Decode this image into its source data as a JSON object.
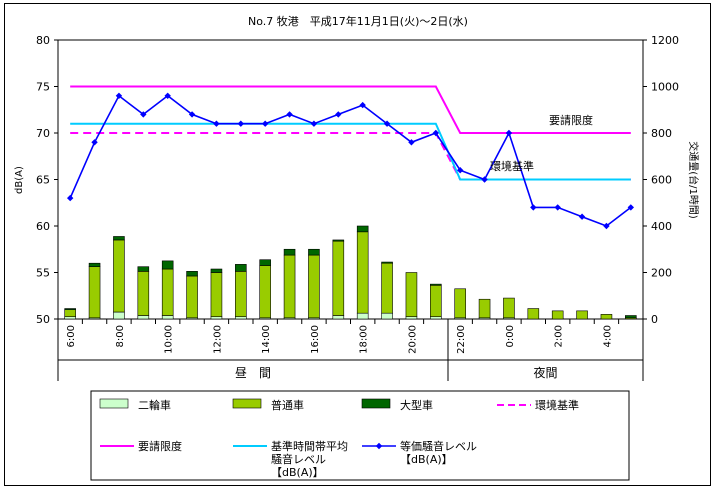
{
  "chart_data": {
    "type": "bar+line",
    "title": "No.7 牧港　平成17年11月1日(火)〜2日(水)",
    "y_left": {
      "label": "dB(A)",
      "ylim": [
        50,
        80
      ],
      "ticks": [
        50,
        55,
        60,
        65,
        70,
        75,
        80
      ]
    },
    "y_right": {
      "label": "交通量(台/1時間)",
      "ylim": [
        0,
        1200
      ],
      "ticks": [
        0,
        200,
        400,
        600,
        800,
        1000,
        1200
      ]
    },
    "categories": [
      "6:00",
      "7:00",
      "8:00",
      "9:00",
      "10:00",
      "11:00",
      "12:00",
      "13:00",
      "14:00",
      "15:00",
      "16:00",
      "17:00",
      "18:00",
      "19:00",
      "20:00",
      "21:00",
      "22:00",
      "23:00",
      "0:00",
      "1:00",
      "2:00",
      "3:00",
      "4:00",
      "5:00"
    ],
    "x_tick_labels": [
      "6:00",
      "",
      "8:00",
      "",
      "10:00",
      "",
      "12:00",
      "",
      "14:00",
      "",
      "16:00",
      "",
      "18:00",
      "",
      "20:00",
      "",
      "22:00",
      "",
      "0:00",
      "",
      "2:00",
      "",
      "4:00",
      ""
    ],
    "period_labels": {
      "day": "昼　間",
      "night": "夜間"
    },
    "bar_series": [
      {
        "name": "二輪車",
        "color": "#ccffcc",
        "values": [
          10,
          5,
          30,
          15,
          15,
          5,
          10,
          10,
          5,
          5,
          5,
          15,
          25,
          25,
          10,
          10,
          5,
          5,
          5,
          0,
          0,
          0,
          0,
          0
        ]
      },
      {
        "name": "普通車",
        "color": "#99cc00",
        "values": [
          30,
          220,
          310,
          190,
          200,
          180,
          190,
          195,
          225,
          270,
          270,
          320,
          350,
          215,
          190,
          135,
          125,
          80,
          85,
          45,
          35,
          35,
          20,
          5
        ]
      },
      {
        "name": "大型車",
        "color": "#006600",
        "values": [
          5,
          15,
          15,
          20,
          35,
          20,
          15,
          30,
          25,
          25,
          25,
          5,
          25,
          5,
          0,
          5,
          0,
          0,
          0,
          0,
          0,
          0,
          0,
          10
        ]
      }
    ],
    "line_series": [
      {
        "name": "等価騒音レベル\n【dB(A)】",
        "color": "#0000ff",
        "marker": "diamond",
        "values": [
          63,
          69,
          74,
          72,
          74,
          72,
          71,
          71,
          71,
          72,
          71,
          72,
          73,
          71,
          69,
          70,
          66,
          65,
          70,
          62,
          62,
          61,
          60,
          62
        ]
      },
      {
        "name": "要請限度",
        "color": "#ff00ff",
        "style": "solid",
        "day_value": 75,
        "night_value": 70
      },
      {
        "name": "環境基準",
        "color": "#ff00ff",
        "style": "dashed",
        "day_value": 70,
        "night_value": 65
      },
      {
        "name": "基準時間帯平均\n騒音レベル\n【dB(A)】",
        "color": "#00ccff",
        "style": "solid",
        "day_value": 71,
        "night_value": 65
      }
    ],
    "annotations": [
      "要請限度",
      "環境基準"
    ],
    "legend": [
      {
        "label": "二輪車",
        "kind": "box",
        "color": "#ccffcc"
      },
      {
        "label": "普通車",
        "kind": "box",
        "color": "#99cc00"
      },
      {
        "label": "大型車",
        "kind": "box",
        "color": "#006600"
      },
      {
        "label": "環境基準",
        "kind": "dash",
        "color": "#ff00ff"
      },
      {
        "label": "要請限度",
        "kind": "line",
        "color": "#ff00ff"
      },
      {
        "label": "基準時間帯平均\n騒音レベル\n【dB(A)】",
        "kind": "line",
        "color": "#00ccff"
      },
      {
        "label": "等価騒音レベル\n【dB(A)】",
        "kind": "marker",
        "color": "#0000ff"
      }
    ]
  }
}
